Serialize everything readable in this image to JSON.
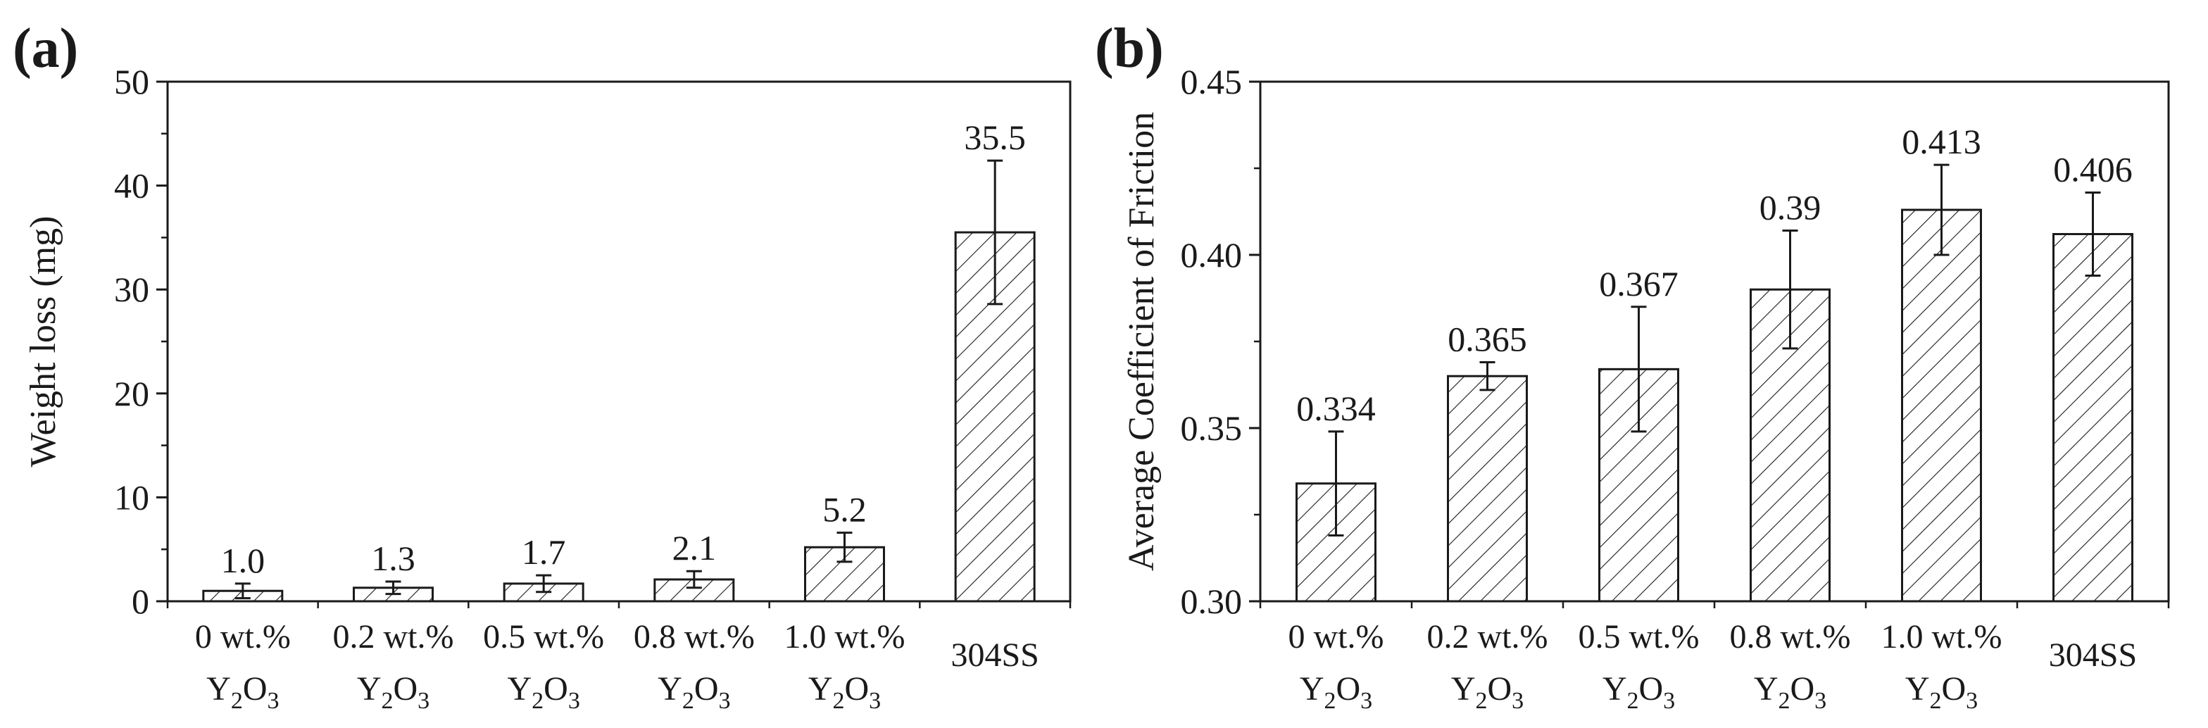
{
  "colors": {
    "bar_stroke": "#1a1a1a",
    "hatch": "#1a1a1a",
    "background": "#ffffff"
  },
  "chart_data": [
    {
      "type": "bar",
      "panel_label": "(a)",
      "title": "",
      "xlabel": "",
      "ylabel": "Weight loss (mg)",
      "ylim": [
        0,
        50
      ],
      "yticks": [
        0,
        10,
        20,
        30,
        40,
        50
      ],
      "ytick_labels": [
        "0",
        "10",
        "20",
        "30",
        "40",
        "50"
      ],
      "categories": [
        {
          "line1": "0 wt.%",
          "base": "Y",
          "sub1": "2",
          "mid": "O",
          "sub2": "3"
        },
        {
          "line1": "0.2 wt.%",
          "base": "Y",
          "sub1": "2",
          "mid": "O",
          "sub2": "3"
        },
        {
          "line1": "0.5 wt.%",
          "base": "Y",
          "sub1": "2",
          "mid": "O",
          "sub2": "3"
        },
        {
          "line1": "0.8 wt.%",
          "base": "Y",
          "sub1": "2",
          "mid": "O",
          "sub2": "3"
        },
        {
          "line1": "1.0 wt.%",
          "base": "Y",
          "sub1": "2",
          "mid": "O",
          "sub2": "3"
        },
        {
          "line1": "304SS"
        }
      ],
      "values": [
        1.0,
        1.3,
        1.7,
        2.1,
        5.2,
        35.5
      ],
      "errors": [
        0.7,
        0.6,
        0.8,
        0.8,
        1.4,
        6.9
      ],
      "value_labels": [
        "1.0",
        "1.3",
        "1.7",
        "2.1",
        "5.2",
        "35.5"
      ],
      "grid": false,
      "bar_fill": "diagonal hatch"
    },
    {
      "type": "bar",
      "panel_label": "(b)",
      "title": "",
      "xlabel": "",
      "ylabel": "Average Coefficient of Friction",
      "ylim": [
        0.3,
        0.45
      ],
      "yticks": [
        0.3,
        0.35,
        0.4,
        0.45
      ],
      "ytick_labels": [
        "0.30",
        "0.35",
        "0.40",
        "0.45"
      ],
      "categories": [
        {
          "line1": "0 wt.%",
          "base": "Y",
          "sub1": "2",
          "mid": "O",
          "sub2": "3"
        },
        {
          "line1": "0.2 wt.%",
          "base": "Y",
          "sub1": "2",
          "mid": "O",
          "sub2": "3"
        },
        {
          "line1": "0.5 wt.%",
          "base": "Y",
          "sub1": "2",
          "mid": "O",
          "sub2": "3"
        },
        {
          "line1": "0.8 wt.%",
          "base": "Y",
          "sub1": "2",
          "mid": "O",
          "sub2": "3"
        },
        {
          "line1": "1.0 wt.%",
          "base": "Y",
          "sub1": "2",
          "mid": "O",
          "sub2": "3"
        },
        {
          "line1": "304SS"
        }
      ],
      "values": [
        0.334,
        0.365,
        0.367,
        0.39,
        0.413,
        0.406
      ],
      "errors": [
        0.015,
        0.004,
        0.018,
        0.017,
        0.013,
        0.012
      ],
      "value_labels": [
        "0.334",
        "0.365",
        "0.367",
        "0.39",
        "0.413",
        "0.406"
      ],
      "grid": false,
      "bar_fill": "diagonal hatch"
    }
  ]
}
